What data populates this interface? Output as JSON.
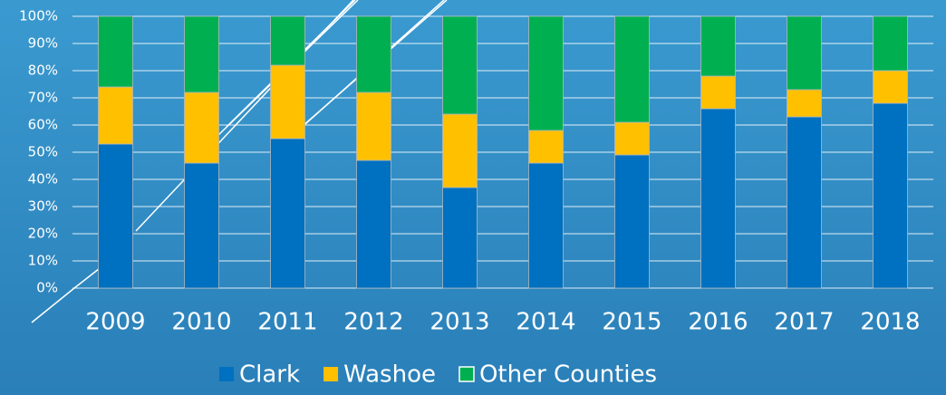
{
  "chart_data": {
    "type": "stacked_bar",
    "categories": [
      "2009",
      "2010",
      "2011",
      "2012",
      "2013",
      "2014",
      "2015",
      "2016",
      "2017",
      "2018"
    ],
    "series": [
      {
        "name": "Clark",
        "color": "#0070c0",
        "values": [
          53,
          46,
          55,
          47,
          37,
          46,
          49,
          66,
          63,
          68
        ]
      },
      {
        "name": "Washoe",
        "color": "#ffc000",
        "values": [
          21,
          26,
          27,
          25,
          27,
          12,
          12,
          12,
          10,
          12
        ]
      },
      {
        "name": "Other Counties",
        "color": "#00b050",
        "values": [
          26,
          28,
          18,
          28,
          36,
          42,
          39,
          22,
          27,
          20
        ]
      }
    ],
    "ylim": [
      0,
      100
    ],
    "yticks": [
      {
        "value": 0,
        "label": "0%"
      },
      {
        "value": 10,
        "label": "10%"
      },
      {
        "value": 20,
        "label": "20%"
      },
      {
        "value": 30,
        "label": "30%"
      },
      {
        "value": 40,
        "label": "40%"
      },
      {
        "value": 50,
        "label": "50%"
      },
      {
        "value": 60,
        "label": "60%"
      },
      {
        "value": 70,
        "label": "70%"
      },
      {
        "value": 80,
        "label": "80%"
      },
      {
        "value": 90,
        "label": "90%"
      },
      {
        "value": 100,
        "label": "100%"
      }
    ],
    "grid": true,
    "legend": "bottom"
  }
}
